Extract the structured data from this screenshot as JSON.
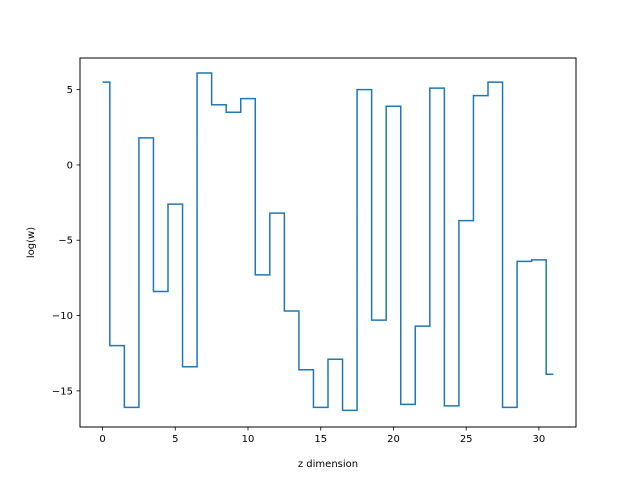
{
  "chart_data": {
    "type": "line",
    "drawstyle": "steps-mid",
    "xlabel": "z dimension",
    "ylabel": "log(w)",
    "xlim": [
      -1.55,
      32.55
    ],
    "ylim": [
      -17.4,
      7.1
    ],
    "xticks": [
      0,
      5,
      10,
      15,
      20,
      25,
      30
    ],
    "xtick_labels": [
      "0",
      "5",
      "10",
      "15",
      "20",
      "25",
      "30"
    ],
    "yticks": [
      -15,
      -10,
      -5,
      0,
      5
    ],
    "ytick_labels": [
      "−15",
      "−10",
      "−5",
      "0",
      "5"
    ],
    "grid": false,
    "series": [
      {
        "color": "#1f77b4",
        "x": [
          0,
          1,
          2,
          3,
          4,
          5,
          6,
          7,
          8,
          9,
          10,
          11,
          12,
          13,
          14,
          15,
          16,
          17,
          18,
          19,
          20,
          21,
          22,
          23,
          24,
          25,
          26,
          27,
          28,
          29,
          30,
          31
        ],
        "y": [
          5.5,
          -12.0,
          -16.1,
          1.8,
          -8.4,
          -2.6,
          -13.4,
          6.1,
          4.0,
          3.5,
          4.4,
          -7.3,
          -3.2,
          -9.7,
          -13.6,
          -16.1,
          -12.9,
          -16.3,
          5.0,
          -10.3,
          3.9,
          -15.9,
          -10.7,
          5.1,
          -16.0,
          -3.7,
          4.6,
          5.5,
          -16.1,
          -6.4,
          -6.3,
          -13.9
        ]
      }
    ]
  }
}
